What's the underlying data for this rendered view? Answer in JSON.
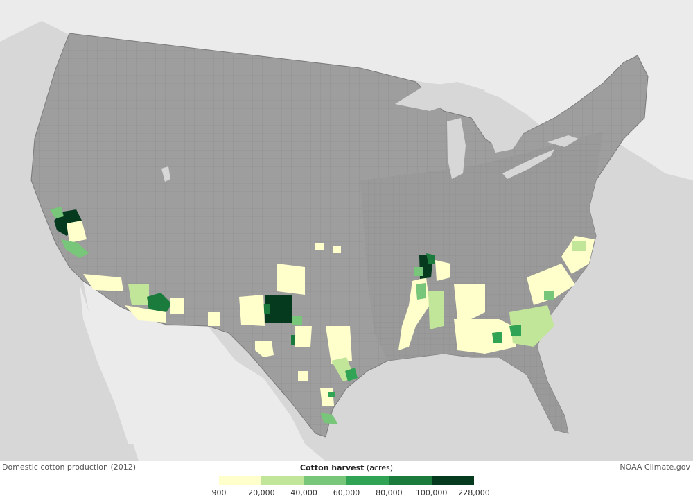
{
  "caption": {
    "left": "Domestic cotton production (2012)",
    "right": "NOAA Climate.gov"
  },
  "legend": {
    "title_bold": "Cotton harvest",
    "title_unit": " (acres)",
    "colors": [
      "#ffffcc",
      "#c2e699",
      "#78c679",
      "#31a354",
      "#1a7b3d",
      "#063a1f"
    ],
    "ticks": [
      "900",
      "20,000",
      "40,000",
      "60,000",
      "80,000",
      "100,000",
      "228,000"
    ]
  },
  "map": {
    "land_color": "#9e9e9e",
    "county_line_color": "#8a8a8a",
    "water_color": "#d7d7d7",
    "foreign_land_color": "#ebebeb",
    "regions": [
      {
        "area": "California Central Valley",
        "class": 5
      },
      {
        "area": "California San Joaquin",
        "class": 2
      },
      {
        "area": "Arizona",
        "class": 4
      },
      {
        "area": "Texas High Plains",
        "class": 6
      },
      {
        "area": "Texas Rolling Plains",
        "class": 1
      },
      {
        "area": "Texas Coastal Bend",
        "class": 3
      },
      {
        "area": "Mississippi Delta",
        "class": 2
      },
      {
        "area": "Missouri Bootheel",
        "class": 6
      },
      {
        "area": "Alabama / Georgia",
        "class": 3
      },
      {
        "area": "Carolinas",
        "class": 2
      }
    ]
  }
}
